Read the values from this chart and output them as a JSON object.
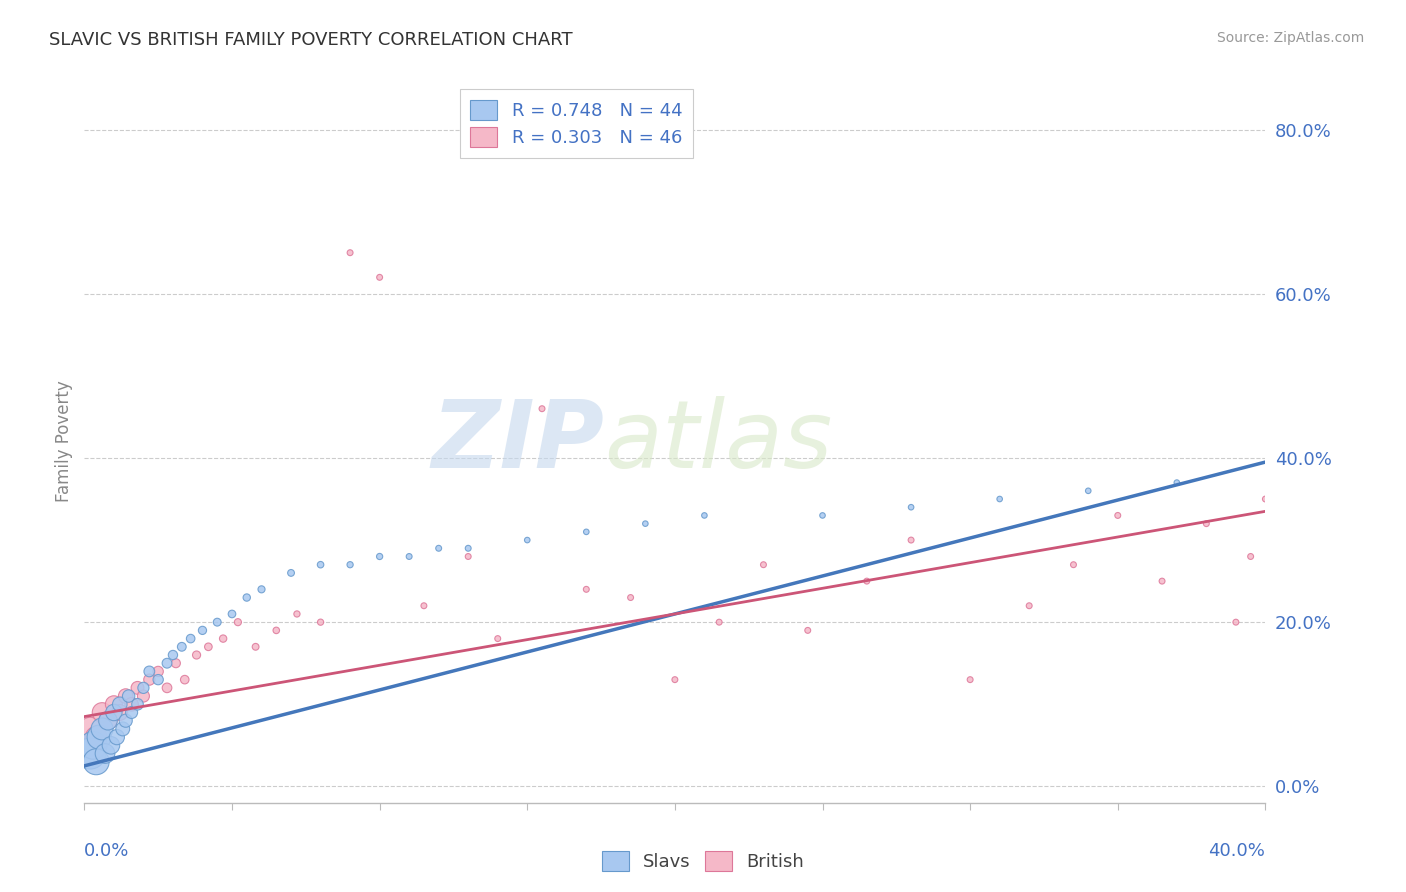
{
  "title": "SLAVIC VS BRITISH FAMILY POVERTY CORRELATION CHART",
  "source": "Source: ZipAtlas.com",
  "ylabel": "Family Poverty",
  "xlim": [
    0.0,
    0.4
  ],
  "ylim": [
    -0.02,
    0.86
  ],
  "slavs_R": 0.748,
  "slavs_N": 44,
  "british_R": 0.303,
  "british_N": 46,
  "slavs_color": "#a8c8f0",
  "british_color": "#f5b8c8",
  "slavs_edge_color": "#6699cc",
  "british_edge_color": "#dd7799",
  "slavs_line_color": "#4477bb",
  "british_line_color": "#cc5577",
  "watermark_color": "#dde8f5",
  "tick_color": "#4472c4",
  "title_color": "#333333",
  "source_color": "#999999",
  "grid_color": "#cccccc",
  "ylabel_color": "#888888",
  "slavs_line_start_y": 0.025,
  "slavs_line_end_y": 0.395,
  "british_line_start_y": 0.085,
  "british_line_end_y": 0.335,
  "slavs_x": [
    0.002,
    0.003,
    0.004,
    0.005,
    0.006,
    0.007,
    0.008,
    0.009,
    0.01,
    0.011,
    0.012,
    0.013,
    0.014,
    0.015,
    0.016,
    0.018,
    0.02,
    0.022,
    0.025,
    0.028,
    0.03,
    0.033,
    0.036,
    0.04,
    0.045,
    0.05,
    0.055,
    0.06,
    0.07,
    0.08,
    0.09,
    0.1,
    0.11,
    0.12,
    0.13,
    0.15,
    0.17,
    0.19,
    0.21,
    0.25,
    0.28,
    0.31,
    0.34,
    0.37
  ],
  "slavs_y": [
    0.04,
    0.05,
    0.03,
    0.06,
    0.07,
    0.04,
    0.08,
    0.05,
    0.09,
    0.06,
    0.1,
    0.07,
    0.08,
    0.11,
    0.09,
    0.1,
    0.12,
    0.14,
    0.13,
    0.15,
    0.16,
    0.17,
    0.18,
    0.19,
    0.2,
    0.21,
    0.23,
    0.24,
    0.26,
    0.27,
    0.27,
    0.28,
    0.28,
    0.29,
    0.29,
    0.3,
    0.31,
    0.32,
    0.33,
    0.33,
    0.34,
    0.35,
    0.36,
    0.37
  ],
  "slavs_sizes": [
    500,
    400,
    350,
    300,
    250,
    200,
    180,
    160,
    140,
    120,
    110,
    100,
    90,
    80,
    75,
    70,
    65,
    60,
    55,
    50,
    45,
    40,
    38,
    35,
    32,
    30,
    28,
    26,
    24,
    22,
    20,
    20,
    18,
    18,
    18,
    16,
    16,
    16,
    16,
    16,
    16,
    16,
    16,
    16
  ],
  "british_x": [
    0.002,
    0.004,
    0.006,
    0.008,
    0.01,
    0.012,
    0.014,
    0.016,
    0.018,
    0.02,
    0.022,
    0.025,
    0.028,
    0.031,
    0.034,
    0.038,
    0.042,
    0.047,
    0.052,
    0.058,
    0.065,
    0.072,
    0.08,
    0.09,
    0.1,
    0.115,
    0.13,
    0.14,
    0.155,
    0.17,
    0.185,
    0.2,
    0.215,
    0.23,
    0.245,
    0.265,
    0.28,
    0.3,
    0.32,
    0.335,
    0.35,
    0.365,
    0.38,
    0.39,
    0.395,
    0.4
  ],
  "british_y": [
    0.07,
    0.06,
    0.09,
    0.08,
    0.1,
    0.09,
    0.11,
    0.1,
    0.12,
    0.11,
    0.13,
    0.14,
    0.12,
    0.15,
    0.13,
    0.16,
    0.17,
    0.18,
    0.2,
    0.17,
    0.19,
    0.21,
    0.2,
    0.65,
    0.62,
    0.22,
    0.28,
    0.18,
    0.46,
    0.24,
    0.23,
    0.13,
    0.2,
    0.27,
    0.19,
    0.25,
    0.3,
    0.13,
    0.22,
    0.27,
    0.33,
    0.25,
    0.32,
    0.2,
    0.28,
    0.35
  ],
  "british_sizes": [
    280,
    240,
    200,
    170,
    150,
    130,
    110,
    95,
    85,
    75,
    65,
    55,
    48,
    42,
    38,
    34,
    30,
    28,
    26,
    24,
    22,
    20,
    20,
    18,
    18,
    18,
    18,
    18,
    18,
    18,
    18,
    18,
    18,
    18,
    18,
    18,
    18,
    18,
    18,
    18,
    18,
    18,
    18,
    18,
    18,
    18
  ]
}
